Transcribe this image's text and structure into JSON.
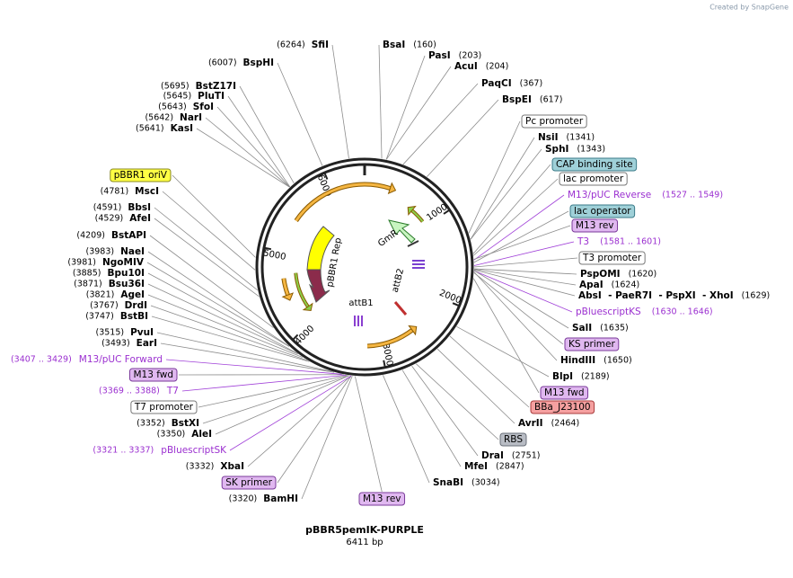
{
  "header": {
    "credit": "Created by SnapGene"
  },
  "map": {
    "name": "pBBR5pemIK-PURPLE",
    "length": {
      "value": 6411,
      "label": "6411 bp"
    },
    "ticks": [
      1000,
      2000,
      3000,
      4000,
      5000,
      6000
    ],
    "features": [
      "GmR",
      "pBBR1 Rep",
      "attB1",
      "attB2"
    ],
    "labels": [
      {
        "name": "BsaI",
        "site": {
          "value": 160,
          "label": "(160)"
        }
      },
      {
        "name": "PasI",
        "site": {
          "value": 203,
          "label": "(203)"
        }
      },
      {
        "name": "AcuI",
        "site": {
          "value": 204,
          "label": "(204)"
        }
      },
      {
        "name": "PaqCI",
        "site": {
          "value": 367,
          "label": "(367)"
        }
      },
      {
        "name": "BspEI",
        "site": {
          "value": 617,
          "label": "(617)"
        }
      },
      {
        "name": "Pc promoter"
      },
      {
        "name": "NsiI",
        "site": {
          "value": 1341,
          "label": "(1341)"
        }
      },
      {
        "name": "SphI",
        "site": {
          "value": 1343,
          "label": "(1343)"
        }
      },
      {
        "name": "CAP binding site"
      },
      {
        "name": "lac promoter"
      },
      {
        "name": "M13/pUC Reverse",
        "range": "(1527 .. 1549)"
      },
      {
        "name": "lac operator"
      },
      {
        "name": "M13 rev"
      },
      {
        "name": "T3",
        "range": "(1581 .. 1601)"
      },
      {
        "name": "T3 promoter"
      },
      {
        "name": "PspOMI",
        "site": {
          "value": 1620,
          "label": "(1620)"
        }
      },
      {
        "name": "ApaI",
        "site": {
          "value": 1624,
          "label": "(1624)"
        }
      },
      {
        "name": "AbsI  - PaeR7I  - PspXI  - XhoI",
        "site": {
          "value": 1629,
          "label": "(1629)"
        }
      },
      {
        "name": "pBluescriptKS",
        "range": "(1630 .. 1646)"
      },
      {
        "name": "SalI",
        "site": {
          "value": 1635,
          "label": "(1635)"
        }
      },
      {
        "name": "KS primer"
      },
      {
        "name": "HindIII",
        "site": {
          "value": 1650,
          "label": "(1650)"
        }
      },
      {
        "name": "BlpI",
        "site": {
          "value": 2189,
          "label": "(2189)"
        }
      },
      {
        "name": "M13 fwd"
      },
      {
        "name": "BBa_J23100"
      },
      {
        "name": "AvrII",
        "site": {
          "value": 2464,
          "label": "(2464)"
        }
      },
      {
        "name": "RBS"
      },
      {
        "name": "DraI",
        "site": {
          "value": 2751,
          "label": "(2751)"
        }
      },
      {
        "name": "MfeI",
        "site": {
          "value": 2847,
          "label": "(2847)"
        }
      },
      {
        "name": "SnaBI",
        "site": {
          "value": 3034,
          "label": "(3034)"
        }
      },
      {
        "name": "M13 rev"
      },
      {
        "name": "BamHI",
        "site": {
          "value": 3320,
          "label": "(3320)"
        }
      },
      {
        "name": "SK primer"
      },
      {
        "name": "XbaI",
        "site": {
          "value": 3332,
          "label": "(3332)"
        }
      },
      {
        "name": "pBluescriptSK",
        "range": "(3321 .. 3337)"
      },
      {
        "name": "AleI",
        "site": {
          "value": 3350,
          "label": "(3350)"
        }
      },
      {
        "name": "BstXI",
        "site": {
          "value": 3352,
          "label": "(3352)"
        }
      },
      {
        "name": "T7 promoter"
      },
      {
        "name": "T7",
        "range": "(3369 .. 3388)"
      },
      {
        "name": "M13 fwd"
      },
      {
        "name": "M13/pUC Forward",
        "range": "(3407 .. 3429)"
      },
      {
        "name": "EarI",
        "site": {
          "value": 3493,
          "label": "(3493)"
        }
      },
      {
        "name": "PvuI",
        "site": {
          "value": 3515,
          "label": "(3515)"
        }
      },
      {
        "name": "BstBI",
        "site": {
          "value": 3747,
          "label": "(3747)"
        }
      },
      {
        "name": "DrdI",
        "site": {
          "value": 3767,
          "label": "(3767)"
        }
      },
      {
        "name": "AgeI",
        "site": {
          "value": 3821,
          "label": "(3821)"
        }
      },
      {
        "name": "Bsu36I",
        "site": {
          "value": 3871,
          "label": "(3871)"
        }
      },
      {
        "name": "Bpu10I",
        "site": {
          "value": 3885,
          "label": "(3885)"
        }
      },
      {
        "name": "NgoMIV",
        "site": {
          "value": 3981,
          "label": "(3981)"
        }
      },
      {
        "name": "NaeI",
        "site": {
          "value": 3983,
          "label": "(3983)"
        }
      },
      {
        "name": "BstAPI",
        "site": {
          "value": 4209,
          "label": "(4209)"
        }
      },
      {
        "name": "AfeI",
        "site": {
          "value": 4529,
          "label": "(4529)"
        }
      },
      {
        "name": "BbsI",
        "site": {
          "value": 4591,
          "label": "(4591)"
        }
      },
      {
        "name": "MscI",
        "site": {
          "value": 4781,
          "label": "(4781)"
        }
      },
      {
        "name": "pBBR1 oriV"
      },
      {
        "name": "KasI",
        "site": {
          "value": 5641,
          "label": "(5641)"
        }
      },
      {
        "name": "NarI",
        "site": {
          "value": 5642,
          "label": "(5642)"
        }
      },
      {
        "name": "SfoI",
        "site": {
          "value": 5643,
          "label": "(5643)"
        }
      },
      {
        "name": "PluTI",
        "site": {
          "value": 5645,
          "label": "(5645)"
        }
      },
      {
        "name": "BstZ17I",
        "site": {
          "value": 5695,
          "label": "(5695)"
        }
      },
      {
        "name": "BspHI",
        "site": {
          "value": 6007,
          "label": "(6007)"
        }
      },
      {
        "name": "SfiI",
        "site": {
          "value": 6264,
          "label": "(6264)"
        }
      }
    ]
  }
}
